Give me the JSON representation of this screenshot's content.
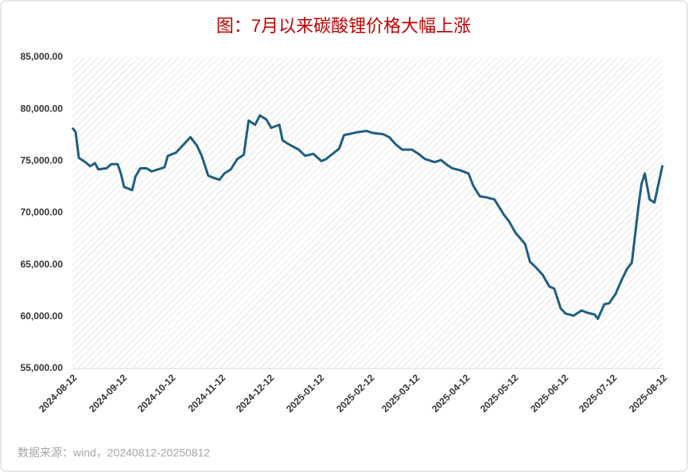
{
  "chart_data": {
    "type": "line",
    "title": "图：7月以来碳酸锂价格大幅上涨",
    "source": "数据来源：wind，20240812-20250812",
    "x": [
      "2024-08-12",
      "2024-08-14",
      "2024-08-16",
      "2024-08-20",
      "2024-08-23",
      "2024-08-26",
      "2024-08-28",
      "2024-09-02",
      "2024-09-05",
      "2024-09-09",
      "2024-09-11",
      "2024-09-13",
      "2024-09-18",
      "2024-09-20",
      "2024-09-23",
      "2024-09-27",
      "2024-09-30",
      "2024-10-08",
      "2024-10-10",
      "2024-10-15",
      "2024-10-21",
      "2024-10-24",
      "2024-10-28",
      "2024-10-31",
      "2024-11-04",
      "2024-11-07",
      "2024-11-11",
      "2024-11-14",
      "2024-11-18",
      "2024-11-22",
      "2024-11-26",
      "2024-11-29",
      "2024-12-03",
      "2024-12-06",
      "2024-12-10",
      "2024-12-13",
      "2024-12-18",
      "2024-12-20",
      "2024-12-24",
      "2024-12-30",
      "2025-01-03",
      "2025-01-08",
      "2025-01-13",
      "2025-01-16",
      "2025-01-20",
      "2025-01-24",
      "2025-01-27",
      "2025-02-05",
      "2025-02-10",
      "2025-02-14",
      "2025-02-20",
      "2025-02-24",
      "2025-02-28",
      "2025-03-04",
      "2025-03-10",
      "2025-03-14",
      "2025-03-18",
      "2025-03-24",
      "2025-03-28",
      "2025-04-01",
      "2025-04-04",
      "2025-04-09",
      "2025-04-14",
      "2025-04-17",
      "2025-04-21",
      "2025-04-25",
      "2025-04-30",
      "2025-05-06",
      "2025-05-09",
      "2025-05-13",
      "2025-05-19",
      "2025-05-22",
      "2025-05-26",
      "2025-05-30",
      "2025-06-03",
      "2025-06-06",
      "2025-06-10",
      "2025-06-13",
      "2025-06-18",
      "2025-06-23",
      "2025-06-26",
      "2025-07-01",
      "2025-07-03",
      "2025-07-07",
      "2025-07-10",
      "2025-07-14",
      "2025-07-17",
      "2025-07-21",
      "2025-07-24",
      "2025-07-28",
      "2025-07-30",
      "2025-08-01",
      "2025-08-04",
      "2025-08-07",
      "2025-08-12"
    ],
    "series": [
      {
        "color": "#1f5f80",
        "values": [
          78200,
          77800,
          75300,
          74900,
          74500,
          74800,
          74200,
          74300,
          74700,
          74700,
          73800,
          72500,
          72200,
          73500,
          74300,
          74300,
          74000,
          74400,
          75500,
          75800,
          76800,
          77300,
          76500,
          75500,
          73600,
          73400,
          73200,
          73800,
          74200,
          75200,
          75600,
          78900,
          78500,
          79400,
          79000,
          78200,
          78500,
          77000,
          76600,
          76100,
          75500,
          75700,
          75000,
          75200,
          75700,
          76200,
          77500,
          77800,
          77900,
          77700,
          77600,
          77300,
          76600,
          76100,
          76100,
          75700,
          75200,
          74900,
          75100,
          74600,
          74300,
          74100,
          73800,
          72600,
          71600,
          71500,
          71300,
          69800,
          69200,
          68100,
          67000,
          65300,
          64700,
          64000,
          62900,
          62700,
          60800,
          60300,
          60100,
          60600,
          60400,
          60200,
          59800,
          61200,
          61300,
          62200,
          63300,
          64600,
          65200,
          70500,
          72800,
          73800,
          71300,
          71000,
          74600
        ]
      }
    ],
    "xlim": [
      "2024-08-12",
      "2025-08-12"
    ],
    "xticks": [
      "2024-08-12",
      "2024-09-12",
      "2024-10-12",
      "2024-11-12",
      "2024-12-12",
      "2025-01-12",
      "2025-02-12",
      "2025-03-12",
      "2025-04-12",
      "2025-05-12",
      "2025-06-12",
      "2025-07-12",
      "2025-08-12"
    ],
    "ylim": [
      55000,
      85000
    ],
    "yticks": [
      {
        "value": 55000,
        "label": "55,000.00"
      },
      {
        "value": 60000,
        "label": "60,000.00"
      },
      {
        "value": 65000,
        "label": "65,000.00"
      },
      {
        "value": 70000,
        "label": "70,000.00"
      },
      {
        "value": 75000,
        "label": "75,000.00"
      },
      {
        "value": 80000,
        "label": "80,000.00"
      },
      {
        "value": 85000,
        "label": "85,000.00"
      }
    ]
  }
}
